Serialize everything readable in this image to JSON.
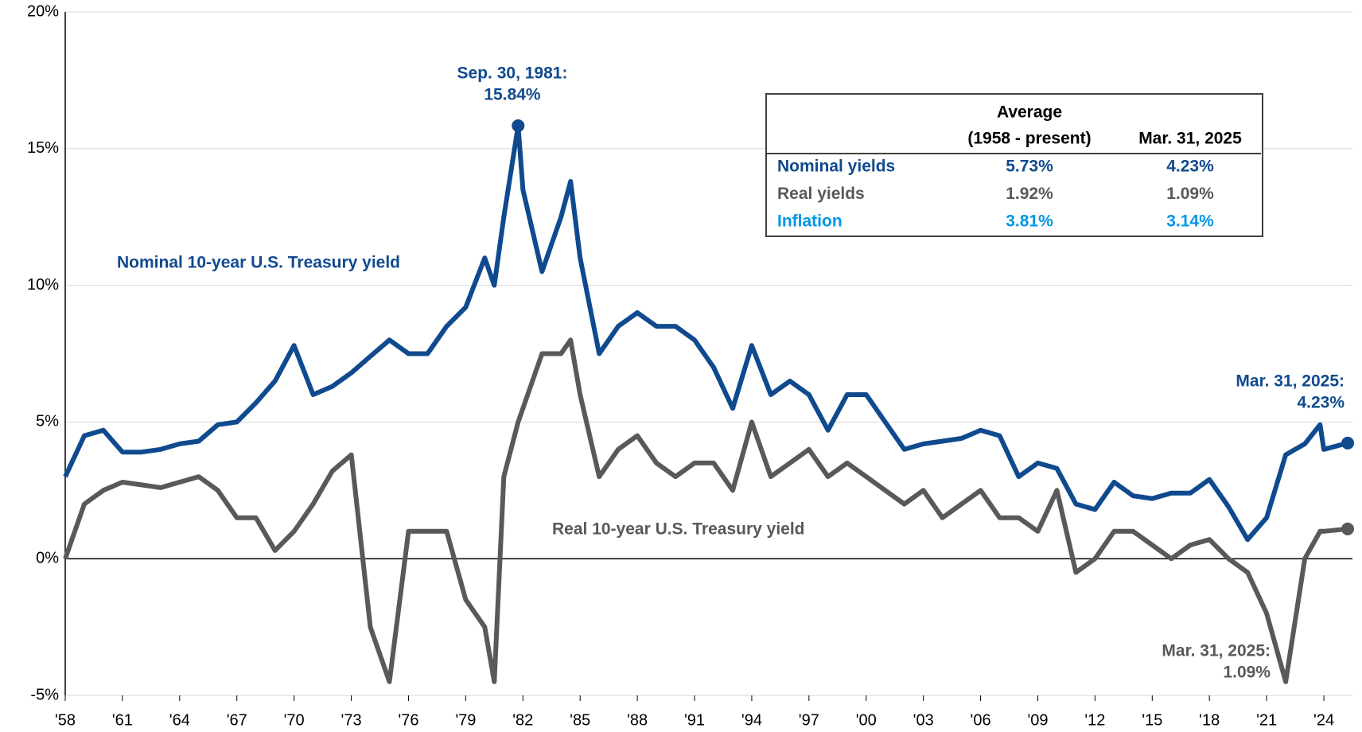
{
  "chart_data": {
    "type": "line",
    "x": [
      1958,
      1959,
      1960,
      1961,
      1962,
      1963,
      1964,
      1965,
      1966,
      1967,
      1968,
      1969,
      1970,
      1971,
      1972,
      1973,
      1974,
      1975,
      1976,
      1977,
      1978,
      1979,
      1980,
      1980.5,
      1981,
      1981.75,
      1982,
      1983,
      1984,
      1984.5,
      1985,
      1986,
      1987,
      1988,
      1989,
      1990,
      1991,
      1992,
      1993,
      1994,
      1995,
      1996,
      1997,
      1998,
      1999,
      2000,
      2001,
      2002,
      2003,
      2004,
      2005,
      2006,
      2007,
      2008,
      2009,
      2010,
      2011,
      2012,
      2013,
      2014,
      2015,
      2016,
      2017,
      2018,
      2019,
      2020,
      2021,
      2022,
      2023,
      2023.8,
      2024,
      2025.25
    ],
    "series": [
      {
        "name": "Nominal 10-year U.S. Treasury yield",
        "color": "#104a8e",
        "values": [
          3.0,
          4.5,
          4.7,
          3.9,
          3.9,
          4.0,
          4.2,
          4.3,
          4.9,
          5.0,
          5.7,
          6.5,
          7.8,
          6.0,
          6.3,
          6.8,
          7.4,
          8.0,
          7.5,
          7.5,
          8.5,
          9.2,
          11.0,
          10.0,
          12.5,
          15.84,
          13.5,
          10.5,
          12.5,
          13.8,
          11.0,
          7.5,
          8.5,
          9.0,
          8.5,
          8.5,
          8.0,
          7.0,
          5.5,
          7.8,
          6.0,
          6.5,
          6.0,
          4.7,
          6.0,
          6.0,
          5.0,
          4.0,
          4.2,
          4.3,
          4.4,
          4.7,
          4.5,
          3.0,
          3.5,
          3.3,
          2.0,
          1.8,
          2.8,
          2.3,
          2.2,
          2.4,
          2.4,
          2.9,
          1.9,
          0.7,
          1.5,
          3.8,
          4.2,
          4.9,
          4.0,
          4.23
        ]
      },
      {
        "name": "Real 10-year U.S. Treasury yield",
        "color": "#595959",
        "values": [
          0.0,
          2.0,
          2.5,
          2.8,
          2.7,
          2.6,
          2.8,
          3.0,
          2.5,
          1.5,
          1.5,
          0.3,
          1.0,
          2.0,
          3.2,
          3.8,
          -2.5,
          -4.5,
          1.0,
          1.0,
          1.0,
          -1.5,
          -2.5,
          -4.5,
          3.0,
          5.0,
          5.5,
          7.5,
          7.5,
          8.0,
          6.0,
          3.0,
          4.0,
          4.5,
          3.5,
          3.0,
          3.5,
          3.5,
          2.5,
          5.0,
          3.0,
          3.5,
          4.0,
          3.0,
          3.5,
          3.0,
          2.5,
          2.0,
          2.5,
          1.5,
          2.0,
          2.5,
          1.5,
          1.5,
          1.0,
          2.5,
          -0.5,
          0.0,
          1.0,
          1.0,
          0.5,
          0.0,
          0.5,
          0.7,
          0.0,
          -0.5,
          -2.0,
          -4.5,
          0.0,
          1.0,
          1.0,
          1.09
        ]
      }
    ],
    "xlim": [
      1958,
      2025.5
    ],
    "xticks": [
      {
        "value": 1958,
        "label": "'58"
      },
      {
        "value": 1961,
        "label": "'61"
      },
      {
        "value": 1964,
        "label": "'64"
      },
      {
        "value": 1967,
        "label": "'67"
      },
      {
        "value": 1970,
        "label": "'70"
      },
      {
        "value": 1973,
        "label": "'73"
      },
      {
        "value": 1976,
        "label": "'76"
      },
      {
        "value": 1979,
        "label": "'79"
      },
      {
        "value": 1982,
        "label": "'82"
      },
      {
        "value": 1985,
        "label": "'85"
      },
      {
        "value": 1988,
        "label": "'88"
      },
      {
        "value": 1991,
        "label": "'91"
      },
      {
        "value": 1994,
        "label": "'94"
      },
      {
        "value": 1997,
        "label": "'97"
      },
      {
        "value": 2000,
        "label": "'00"
      },
      {
        "value": 2003,
        "label": "'03"
      },
      {
        "value": 2006,
        "label": "'06"
      },
      {
        "value": 2009,
        "label": "'09"
      },
      {
        "value": 2012,
        "label": "'12"
      },
      {
        "value": 2015,
        "label": "'15"
      },
      {
        "value": 2018,
        "label": "'18"
      },
      {
        "value": 2021,
        "label": "'21"
      },
      {
        "value": 2024,
        "label": "'24"
      }
    ],
    "ylim": [
      -5,
      20
    ],
    "yticks": [
      {
        "value": -5,
        "label": "-5%"
      },
      {
        "value": 0,
        "label": "0%"
      },
      {
        "value": 5,
        "label": "5%"
      },
      {
        "value": 10,
        "label": "10%"
      },
      {
        "value": 15,
        "label": "15%"
      },
      {
        "value": 20,
        "label": "20%"
      }
    ],
    "grid": true,
    "annotations": [
      {
        "lines": [
          "Sep. 30, 1981:",
          "15.84%"
        ],
        "series": 0,
        "index": 25
      },
      {
        "lines": [
          "Mar. 31, 2025:",
          "4.23%"
        ],
        "series": 0,
        "index": 71
      },
      {
        "lines": [
          "Mar. 31, 2025:",
          "1.09%"
        ],
        "series": 1,
        "index": 71
      }
    ],
    "table": {
      "header": [
        [
          "Average",
          "(1958 - present)"
        ],
        [
          "Mar. 31, 2025"
        ]
      ],
      "rows": [
        {
          "label": "Nominal yields",
          "color": "#104a8e",
          "values": [
            "5.73%",
            "4.23%"
          ]
        },
        {
          "label": "Real yields",
          "color": "#595959",
          "values": [
            "1.92%",
            "1.09%"
          ]
        },
        {
          "label": "Inflation",
          "color": "#0096e6",
          "values": [
            "3.81%",
            "3.14%"
          ]
        }
      ]
    }
  }
}
